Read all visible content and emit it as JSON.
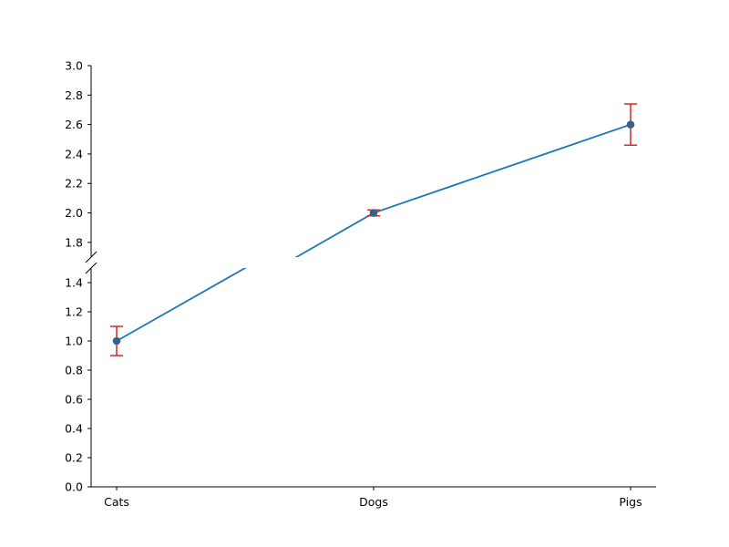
{
  "chart_data": {
    "type": "line",
    "title": "",
    "xlabel": "",
    "ylabel": "",
    "categories": [
      "Cats",
      "Dogs",
      "Pigs"
    ],
    "series": [
      {
        "values": [
          1.0,
          2.0,
          2.6
        ],
        "errors": [
          0.1,
          0.02,
          0.14
        ],
        "color": "#1f77b4",
        "marker_color": "#3a5f8a",
        "error_color": "#d62728"
      }
    ],
    "broken_y_axis": true,
    "upper_panel": {
      "ylim": [
        1.7,
        3.0
      ],
      "ticks": [
        "1.8",
        "2.0",
        "2.2",
        "2.4",
        "2.6",
        "2.8",
        "3.0"
      ]
    },
    "lower_panel": {
      "ylim": [
        0.0,
        1.5
      ],
      "ticks": [
        "0.0",
        "0.2",
        "0.4",
        "0.6",
        "0.8",
        "1.0",
        "1.2",
        "1.4"
      ]
    },
    "grid": false,
    "legend": "none"
  }
}
